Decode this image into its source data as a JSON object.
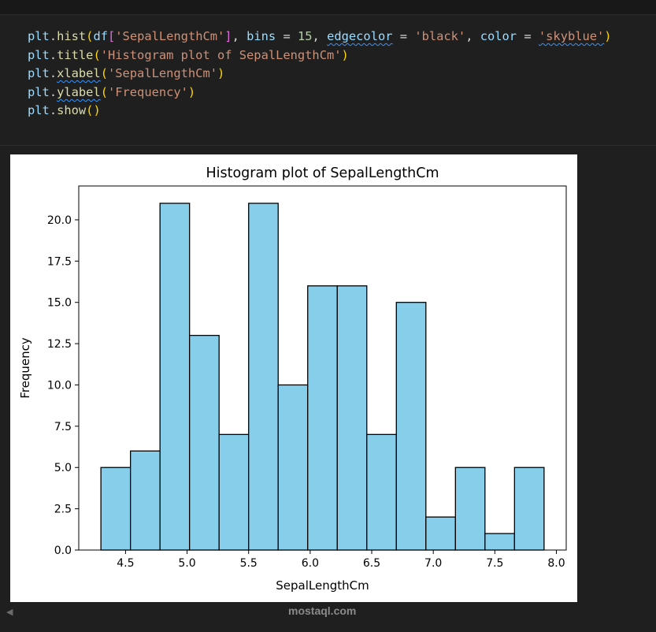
{
  "code_lines": [
    [
      [
        "var",
        "plt"
      ],
      [
        "op",
        "."
      ],
      [
        "fn",
        "hist"
      ],
      [
        "p1",
        "("
      ],
      [
        "var",
        "df"
      ],
      [
        "p2",
        "["
      ],
      [
        "str",
        "'SepalLengthCm'"
      ],
      [
        "p2",
        "]"
      ],
      [
        "op",
        ", "
      ],
      [
        "var",
        "bins"
      ],
      [
        "op",
        " = "
      ],
      [
        "num",
        "15"
      ],
      [
        "op",
        ", "
      ],
      [
        "var squig",
        "edgecolor"
      ],
      [
        "op",
        " = "
      ],
      [
        "str",
        "'black'"
      ],
      [
        "op",
        ", "
      ],
      [
        "var",
        "color"
      ],
      [
        "op",
        " = "
      ],
      [
        "str squig",
        "'skyblue'"
      ],
      [
        "p1",
        ")"
      ]
    ],
    [
      [
        "var",
        "plt"
      ],
      [
        "op",
        "."
      ],
      [
        "fn",
        "title"
      ],
      [
        "p1",
        "("
      ],
      [
        "str",
        "'Histogram plot of SepalLengthCm'"
      ],
      [
        "p1",
        ")"
      ]
    ],
    [
      [
        "var",
        "plt"
      ],
      [
        "op",
        "."
      ],
      [
        "fn squig",
        "xlabel"
      ],
      [
        "p1",
        "("
      ],
      [
        "str",
        "'SepalLengthCm'"
      ],
      [
        "p1",
        ")"
      ]
    ],
    [
      [
        "var",
        "plt"
      ],
      [
        "op",
        "."
      ],
      [
        "fn squig",
        "ylabel"
      ],
      [
        "p1",
        "("
      ],
      [
        "str",
        "'Frequency'"
      ],
      [
        "p1",
        ")"
      ]
    ],
    [
      [
        "var",
        "plt"
      ],
      [
        "op",
        "."
      ],
      [
        "fn",
        "show"
      ],
      [
        "p1",
        "()"
      ]
    ]
  ],
  "chart_data": {
    "type": "bar",
    "title": "Histogram plot of SepalLengthCm",
    "xlabel": "SepalLengthCm",
    "ylabel": "Frequency",
    "bin_start": 4.3,
    "bin_width": 0.24,
    "values": [
      5,
      6,
      21,
      13,
      7,
      21,
      10,
      16,
      16,
      7,
      15,
      2,
      5,
      1,
      5
    ],
    "bar_color": "#87ceeb",
    "edge_color": "#000000",
    "xlim": [
      4.12,
      8.08
    ],
    "ylim": [
      0,
      22.05
    ],
    "xticks": [
      4.5,
      5.0,
      5.5,
      6.0,
      6.5,
      7.0,
      7.5,
      8.0
    ],
    "xtick_labels": [
      "4.5",
      "5.0",
      "5.5",
      "6.0",
      "6.5",
      "7.0",
      "7.5",
      "8.0"
    ],
    "yticks": [
      0,
      2.5,
      5,
      7.5,
      10,
      12.5,
      15,
      17.5,
      20
    ],
    "ytick_labels": [
      "0.0",
      "2.5",
      "5.0",
      "7.5",
      "10.0",
      "12.5",
      "15.0",
      "17.5",
      "20.0"
    ],
    "grid": false
  },
  "watermark": "mostaql.com",
  "collapse_icon": "triangle-left-icon"
}
